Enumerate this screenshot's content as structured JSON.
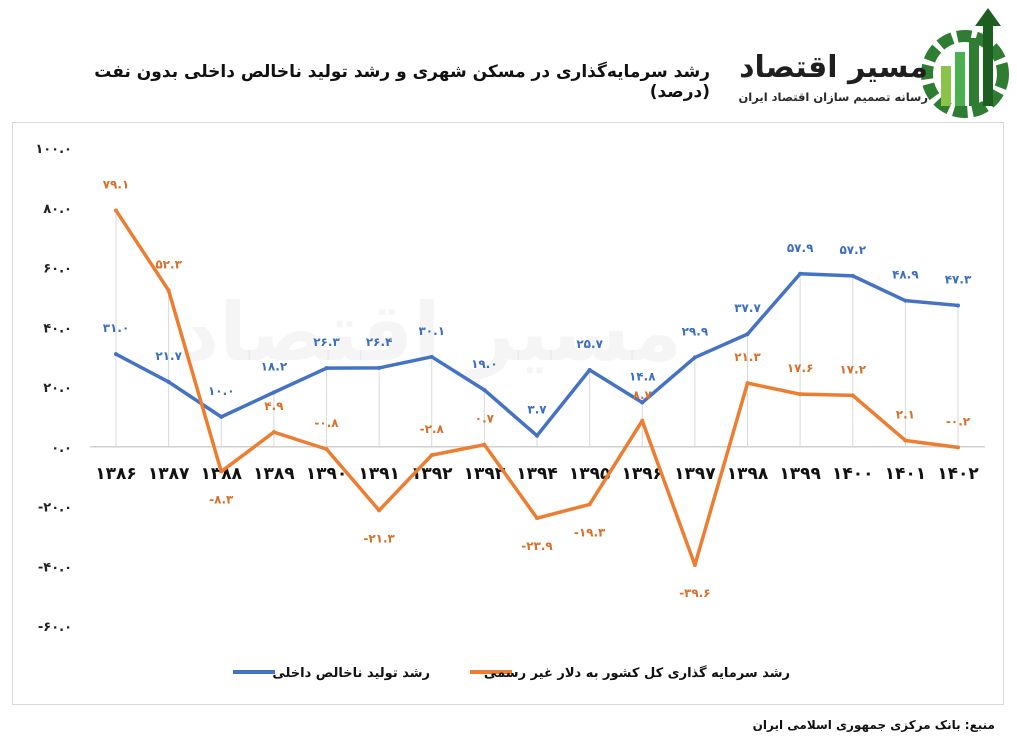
{
  "chart_data": {
    "type": "line",
    "title": "رشد سرمایه‌گذاری در مسکن شهری و رشد تولید ناخالص داخلی بدون نفت (درصد)",
    "categories": [
      "۱۳۸۶",
      "۱۳۸۷",
      "۱۳۸۸",
      "۱۳۸۹",
      "۱۳۹۰",
      "۱۳۹۱",
      "۱۳۹۲",
      "۱۳۹۳",
      "۱۳۹۴",
      "۱۳۹۵",
      "۱۳۹۶",
      "۱۳۹۷",
      "۱۳۹۸",
      "۱۳۹۹",
      "۱۴۰۰",
      "۱۴۰۱",
      "۱۴۰۲"
    ],
    "ylim": [
      -60,
      100
    ],
    "yticks": [
      100,
      80,
      60,
      40,
      20,
      0,
      -20,
      -40,
      -60
    ],
    "ytick_labels": [
      "۱۰۰.۰",
      "۸۰.۰",
      "۶۰.۰",
      "۴۰.۰",
      "۲۰.۰",
      "۰.۰",
      "-۲۰.۰",
      "-۴۰.۰",
      "-۶۰.۰"
    ],
    "grid": "vertical",
    "legend_position": "bottom",
    "series": [
      {
        "name": "رشد تولید ناخالص داخلی",
        "color": "#4472c4",
        "values": [
          31.0,
          21.7,
          10.0,
          18.2,
          26.3,
          26.4,
          30.1,
          19.0,
          3.7,
          25.7,
          14.8,
          29.9,
          37.7,
          57.9,
          57.2,
          48.9,
          47.3
        ],
        "labels": [
          "۳۱.۰",
          "۲۱.۷",
          "۱۰.۰",
          "۱۸.۲",
          "۲۶.۳",
          "۲۶.۴",
          "۳۰.۱",
          "۱۹.۰",
          "۳.۷",
          "۲۵.۷",
          "۱۴.۸",
          "۲۹.۹",
          "۳۷.۷",
          "۵۷.۹",
          "۵۷.۲",
          "۴۸.۹",
          "۴۷.۳"
        ]
      },
      {
        "name": "رشد سرمایه گذاری کل کشور به دلار غیر رسمی",
        "color": "#ed7d31",
        "values": [
          79.1,
          52.3,
          -8.3,
          4.9,
          -0.8,
          -21.3,
          -2.8,
          0.7,
          -23.9,
          -19.3,
          8.7,
          -39.6,
          21.3,
          17.6,
          17.2,
          2.1,
          -0.2
        ],
        "labels": [
          "۷۹.۱",
          "۵۲.۳",
          "-۸.۳",
          "۴.۹",
          "-۰.۸",
          "-۲۱.۳",
          "-۲.۸",
          "۰.۷",
          "-۲۳.۹",
          "-۱۹.۳",
          "۸.۷",
          "-۳۹.۶",
          "۲۱.۳",
          "۱۷.۶",
          "۱۷.۲",
          "۲.۱",
          "-۰.۲"
        ]
      }
    ]
  },
  "logo": {
    "name": "مسیر اقتصاد",
    "tagline": "رسانه تصمیم سازان اقتصاد ایران"
  },
  "source": "منبع: بانک مرکزی جمهوری اسلامی ایران"
}
